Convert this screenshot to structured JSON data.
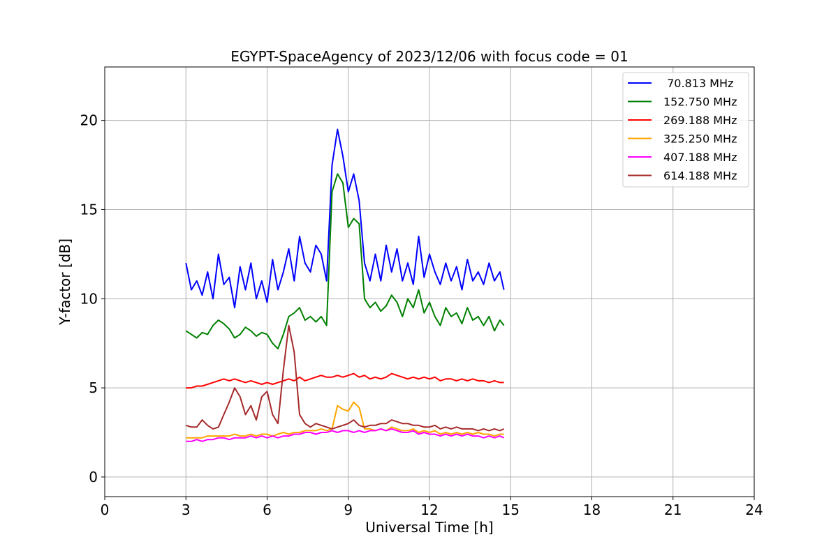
{
  "chart_data": {
    "type": "line",
    "title": "EGYPT-SpaceAgency of 2023/12/06 with focus code = 01",
    "xlabel": "Universal Time [h]",
    "ylabel": "Y-factor [dB]",
    "xlim": [
      0,
      24
    ],
    "ylim": [
      -1.1,
      23
    ],
    "xticks": [
      0,
      3,
      6,
      9,
      12,
      15,
      18,
      21,
      24
    ],
    "yticks": [
      0,
      5,
      10,
      15,
      20
    ],
    "grid": true,
    "legend_position": "top-right",
    "series": [
      {
        "name": " 70.813 MHz",
        "color": "#0000ff",
        "x": [
          3.0,
          3.2,
          3.4,
          3.6,
          3.8,
          4.0,
          4.2,
          4.4,
          4.6,
          4.8,
          5.0,
          5.2,
          5.4,
          5.6,
          5.8,
          6.0,
          6.2,
          6.4,
          6.6,
          6.8,
          7.0,
          7.2,
          7.4,
          7.6,
          7.8,
          8.0,
          8.2,
          8.4,
          8.6,
          8.8,
          9.0,
          9.2,
          9.4,
          9.6,
          9.8,
          10.0,
          10.2,
          10.4,
          10.6,
          10.8,
          11.0,
          11.2,
          11.4,
          11.6,
          11.8,
          12.0,
          12.2,
          12.4,
          12.6,
          12.8,
          13.0,
          13.2,
          13.4,
          13.6,
          13.8,
          14.0,
          14.2,
          14.4,
          14.6,
          14.75
        ],
        "y": [
          12.0,
          10.5,
          11.0,
          10.2,
          11.5,
          10.0,
          12.5,
          10.8,
          11.2,
          9.5,
          11.8,
          10.5,
          12.0,
          10.0,
          11.0,
          9.8,
          12.2,
          10.5,
          11.5,
          12.8,
          11.0,
          13.5,
          12.0,
          11.5,
          13.0,
          12.5,
          11.0,
          17.5,
          19.5,
          18.0,
          16.0,
          17.0,
          15.5,
          12.0,
          11.0,
          12.5,
          11.0,
          13.0,
          11.5,
          12.8,
          11.0,
          12.0,
          10.8,
          13.5,
          11.2,
          12.5,
          11.5,
          10.8,
          12.0,
          11.0,
          11.8,
          10.5,
          12.2,
          11.0,
          11.5,
          10.8,
          12.0,
          11.0,
          11.5,
          10.5
        ]
      },
      {
        "name": "152.750 MHz",
        "color": "#008000",
        "x": [
          3.0,
          3.2,
          3.4,
          3.6,
          3.8,
          4.0,
          4.2,
          4.4,
          4.6,
          4.8,
          5.0,
          5.2,
          5.4,
          5.6,
          5.8,
          6.0,
          6.2,
          6.4,
          6.6,
          6.8,
          7.0,
          7.2,
          7.4,
          7.6,
          7.8,
          8.0,
          8.2,
          8.4,
          8.6,
          8.8,
          9.0,
          9.2,
          9.4,
          9.6,
          9.8,
          10.0,
          10.2,
          10.4,
          10.6,
          10.8,
          11.0,
          11.2,
          11.4,
          11.6,
          11.8,
          12.0,
          12.2,
          12.4,
          12.6,
          12.8,
          13.0,
          13.2,
          13.4,
          13.6,
          13.8,
          14.0,
          14.2,
          14.4,
          14.6,
          14.75
        ],
        "y": [
          8.2,
          8.0,
          7.8,
          8.1,
          8.0,
          8.5,
          8.8,
          8.6,
          8.3,
          7.8,
          8.0,
          8.4,
          8.2,
          7.9,
          8.1,
          8.0,
          7.5,
          7.2,
          8.0,
          9.0,
          9.2,
          9.5,
          8.8,
          9.0,
          8.7,
          9.0,
          8.5,
          16.0,
          17.0,
          16.5,
          14.0,
          14.5,
          14.2,
          10.0,
          9.5,
          9.8,
          9.3,
          9.6,
          10.2,
          9.8,
          9.0,
          10.0,
          9.5,
          10.5,
          9.2,
          9.8,
          9.0,
          8.5,
          9.5,
          9.0,
          9.2,
          8.6,
          9.5,
          8.8,
          9.0,
          8.5,
          9.0,
          8.2,
          8.8,
          8.5
        ]
      },
      {
        "name": "269.188 MHz",
        "color": "#ff0000",
        "x": [
          3.0,
          3.2,
          3.4,
          3.6,
          3.8,
          4.0,
          4.2,
          4.4,
          4.6,
          4.8,
          5.0,
          5.2,
          5.4,
          5.6,
          5.8,
          6.0,
          6.2,
          6.4,
          6.6,
          6.8,
          7.0,
          7.2,
          7.4,
          7.6,
          7.8,
          8.0,
          8.2,
          8.4,
          8.6,
          8.8,
          9.0,
          9.2,
          9.4,
          9.6,
          9.8,
          10.0,
          10.2,
          10.4,
          10.6,
          10.8,
          11.0,
          11.2,
          11.4,
          11.6,
          11.8,
          12.0,
          12.2,
          12.4,
          12.6,
          12.8,
          13.0,
          13.2,
          13.4,
          13.6,
          13.8,
          14.0,
          14.2,
          14.4,
          14.6,
          14.75
        ],
        "y": [
          5.0,
          5.0,
          5.1,
          5.1,
          5.2,
          5.3,
          5.4,
          5.5,
          5.4,
          5.5,
          5.4,
          5.3,
          5.4,
          5.3,
          5.2,
          5.3,
          5.2,
          5.3,
          5.4,
          5.5,
          5.4,
          5.6,
          5.4,
          5.5,
          5.6,
          5.7,
          5.6,
          5.6,
          5.7,
          5.6,
          5.7,
          5.8,
          5.6,
          5.7,
          5.5,
          5.6,
          5.5,
          5.6,
          5.8,
          5.7,
          5.6,
          5.5,
          5.6,
          5.5,
          5.6,
          5.5,
          5.6,
          5.4,
          5.5,
          5.5,
          5.4,
          5.5,
          5.4,
          5.5,
          5.4,
          5.4,
          5.3,
          5.4,
          5.3,
          5.3
        ]
      },
      {
        "name": "325.250 MHz",
        "color": "#ffa500",
        "x": [
          3.0,
          3.2,
          3.4,
          3.6,
          3.8,
          4.0,
          4.2,
          4.4,
          4.6,
          4.8,
          5.0,
          5.2,
          5.4,
          5.6,
          5.8,
          6.0,
          6.2,
          6.4,
          6.6,
          6.8,
          7.0,
          7.2,
          7.4,
          7.6,
          7.8,
          8.0,
          8.2,
          8.4,
          8.6,
          8.8,
          9.0,
          9.2,
          9.4,
          9.6,
          9.8,
          10.0,
          10.2,
          10.4,
          10.6,
          10.8,
          11.0,
          11.2,
          11.4,
          11.6,
          11.8,
          12.0,
          12.2,
          12.4,
          12.6,
          12.8,
          13.0,
          13.2,
          13.4,
          13.6,
          13.8,
          14.0,
          14.2,
          14.4,
          14.6,
          14.75
        ],
        "y": [
          2.2,
          2.2,
          2.2,
          2.2,
          2.3,
          2.3,
          2.3,
          2.3,
          2.3,
          2.4,
          2.3,
          2.3,
          2.4,
          2.3,
          2.4,
          2.4,
          2.3,
          2.4,
          2.5,
          2.4,
          2.5,
          2.5,
          2.6,
          2.6,
          2.6,
          2.7,
          2.6,
          2.7,
          4.0,
          3.8,
          3.7,
          4.2,
          3.9,
          2.7,
          2.7,
          2.6,
          2.7,
          2.6,
          2.8,
          2.7,
          2.6,
          2.6,
          2.7,
          2.5,
          2.6,
          2.5,
          2.6,
          2.4,
          2.5,
          2.4,
          2.5,
          2.4,
          2.5,
          2.4,
          2.5,
          2.4,
          2.4,
          2.3,
          2.4,
          2.4
        ]
      },
      {
        "name": "407.188 MHz",
        "color": "#ff00ff",
        "x": [
          3.0,
          3.2,
          3.4,
          3.6,
          3.8,
          4.0,
          4.2,
          4.4,
          4.6,
          4.8,
          5.0,
          5.2,
          5.4,
          5.6,
          5.8,
          6.0,
          6.2,
          6.4,
          6.6,
          6.8,
          7.0,
          7.2,
          7.4,
          7.6,
          7.8,
          8.0,
          8.2,
          8.4,
          8.6,
          8.8,
          9.0,
          9.2,
          9.4,
          9.6,
          9.8,
          10.0,
          10.2,
          10.4,
          10.6,
          10.8,
          11.0,
          11.2,
          11.4,
          11.6,
          11.8,
          12.0,
          12.2,
          12.4,
          12.6,
          12.8,
          13.0,
          13.2,
          13.4,
          13.6,
          13.8,
          14.0,
          14.2,
          14.4,
          14.6,
          14.75
        ],
        "y": [
          2.0,
          2.0,
          2.1,
          2.0,
          2.1,
          2.1,
          2.2,
          2.2,
          2.1,
          2.2,
          2.2,
          2.2,
          2.3,
          2.2,
          2.3,
          2.2,
          2.3,
          2.2,
          2.3,
          2.3,
          2.4,
          2.4,
          2.5,
          2.5,
          2.4,
          2.5,
          2.5,
          2.6,
          2.5,
          2.6,
          2.6,
          2.5,
          2.6,
          2.5,
          2.6,
          2.6,
          2.7,
          2.6,
          2.7,
          2.6,
          2.5,
          2.5,
          2.6,
          2.4,
          2.5,
          2.4,
          2.4,
          2.3,
          2.4,
          2.3,
          2.4,
          2.3,
          2.4,
          2.3,
          2.3,
          2.2,
          2.3,
          2.2,
          2.3,
          2.2
        ]
      },
      {
        "name": "614.188 MHz",
        "color": "#a52a2a",
        "x": [
          3.0,
          3.2,
          3.4,
          3.6,
          3.8,
          4.0,
          4.2,
          4.4,
          4.6,
          4.8,
          5.0,
          5.2,
          5.4,
          5.6,
          5.8,
          6.0,
          6.2,
          6.4,
          6.6,
          6.8,
          7.0,
          7.2,
          7.4,
          7.6,
          7.8,
          8.0,
          8.2,
          8.4,
          8.6,
          8.8,
          9.0,
          9.2,
          9.4,
          9.6,
          9.8,
          10.0,
          10.2,
          10.4,
          10.6,
          10.8,
          11.0,
          11.2,
          11.4,
          11.6,
          11.8,
          12.0,
          12.2,
          12.4,
          12.6,
          12.8,
          13.0,
          13.2,
          13.4,
          13.6,
          13.8,
          14.0,
          14.2,
          14.4,
          14.6,
          14.75
        ],
        "y": [
          2.9,
          2.8,
          2.8,
          3.2,
          2.9,
          2.7,
          2.8,
          3.5,
          4.2,
          5.0,
          4.5,
          3.5,
          4.0,
          3.2,
          4.5,
          4.8,
          3.5,
          3.0,
          6.0,
          8.5,
          7.0,
          3.5,
          3.0,
          2.8,
          3.0,
          2.9,
          2.8,
          2.7,
          2.8,
          2.9,
          3.0,
          3.2,
          2.9,
          2.8,
          2.9,
          2.9,
          3.0,
          3.0,
          3.2,
          3.1,
          3.0,
          3.0,
          2.9,
          2.9,
          2.8,
          2.8,
          2.9,
          2.7,
          2.8,
          2.7,
          2.8,
          2.7,
          2.7,
          2.7,
          2.6,
          2.7,
          2.6,
          2.7,
          2.6,
          2.7
        ]
      }
    ]
  }
}
